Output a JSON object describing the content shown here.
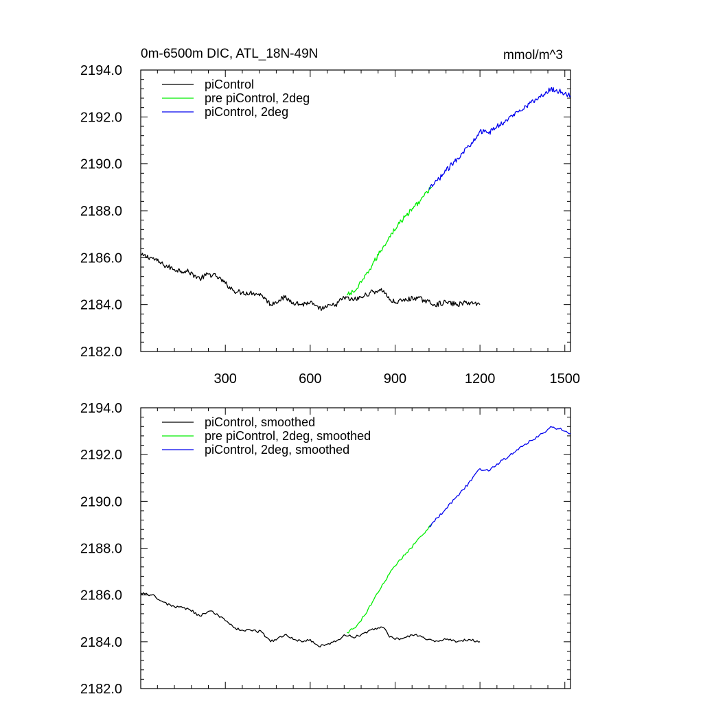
{
  "figure": {
    "title_left": "0m-6500m DIC, ATL_18N-49N",
    "title_right": "mmol/m^3"
  },
  "chart_data": [
    {
      "type": "line",
      "title": "0m-6500m DIC, ATL_18N-49N",
      "units": "mmol/m^3",
      "xlim": [
        1,
        1520
      ],
      "ylim": [
        2182.0,
        2194.0
      ],
      "xticks": [
        300,
        600,
        900,
        1200,
        1500
      ],
      "xtick_labels": [
        "300",
        "600",
        "900",
        "1200",
        "1500"
      ],
      "yticks": [
        2182.0,
        2184.0,
        2186.0,
        2188.0,
        2190.0,
        2192.0,
        2194.0
      ],
      "ytick_labels": [
        "2182.0",
        "2184.0",
        "2186.0",
        "2188.0",
        "2190.0",
        "2192.0",
        "2194.0"
      ],
      "legend_position": "top-left",
      "series": [
        {
          "name": "piControl",
          "color": "#000000",
          "points": [
            [
              1,
              2186.1
            ],
            [
              40,
              2186.0
            ],
            [
              80,
              2185.7
            ],
            [
              120,
              2185.5
            ],
            [
              170,
              2185.4
            ],
            [
              210,
              2185.1
            ],
            [
              240,
              2185.3
            ],
            [
              270,
              2185.2
            ],
            [
              300,
              2184.9
            ],
            [
              330,
              2184.6
            ],
            [
              360,
              2184.5
            ],
            [
              400,
              2184.5
            ],
            [
              430,
              2184.4
            ],
            [
              460,
              2184.0
            ],
            [
              490,
              2184.2
            ],
            [
              510,
              2184.3
            ],
            [
              540,
              2184.1
            ],
            [
              570,
              2184.0
            ],
            [
              600,
              2184.1
            ],
            [
              630,
              2183.8
            ],
            [
              660,
              2183.9
            ],
            [
              690,
              2184.0
            ],
            [
              720,
              2184.3
            ],
            [
              750,
              2184.2
            ],
            [
              780,
              2184.3
            ],
            [
              810,
              2184.5
            ],
            [
              840,
              2184.6
            ],
            [
              860,
              2184.6
            ],
            [
              880,
              2184.2
            ],
            [
              900,
              2184.1
            ],
            [
              940,
              2184.2
            ],
            [
              970,
              2184.3
            ],
            [
              1000,
              2184.2
            ],
            [
              1040,
              2184.0
            ],
            [
              1080,
              2184.1
            ],
            [
              1120,
              2184.0
            ],
            [
              1160,
              2184.1
            ],
            [
              1200,
              2184.0
            ]
          ]
        },
        {
          "name": "pre piControl, 2deg",
          "color": "#00ee00",
          "points": [
            [
              730,
              2184.4
            ],
            [
              760,
              2184.6
            ],
            [
              790,
              2185.1
            ],
            [
              820,
              2185.7
            ],
            [
              850,
              2186.3
            ],
            [
              880,
              2186.9
            ],
            [
              910,
              2187.4
            ],
            [
              940,
              2187.8
            ],
            [
              970,
              2188.2
            ],
            [
              1000,
              2188.6
            ],
            [
              1030,
              2189.0
            ]
          ]
        },
        {
          "name": "piControl, 2deg",
          "color": "#0000ee",
          "points": [
            [
              1020,
              2188.9
            ],
            [
              1050,
              2189.3
            ],
            [
              1080,
              2189.7
            ],
            [
              1110,
              2190.1
            ],
            [
              1140,
              2190.5
            ],
            [
              1170,
              2190.9
            ],
            [
              1200,
              2191.4
            ],
            [
              1230,
              2191.3
            ],
            [
              1260,
              2191.6
            ],
            [
              1300,
              2191.9
            ],
            [
              1340,
              2192.3
            ],
            [
              1380,
              2192.6
            ],
            [
              1420,
              2192.9
            ],
            [
              1450,
              2193.2
            ],
            [
              1480,
              2193.1
            ],
            [
              1500,
              2193.0
            ],
            [
              1520,
              2192.9
            ]
          ]
        }
      ]
    },
    {
      "type": "line",
      "title": "",
      "xlim": [
        1,
        1520
      ],
      "ylim": [
        2182.0,
        2194.0
      ],
      "xticks": [
        300,
        600,
        900,
        1200,
        1500
      ],
      "xtick_labels": [],
      "yticks": [
        2182.0,
        2184.0,
        2186.0,
        2188.0,
        2190.0,
        2192.0,
        2194.0
      ],
      "ytick_labels": [
        "2182.0",
        "2184.0",
        "2186.0",
        "2188.0",
        "2190.0",
        "2192.0",
        "2194.0"
      ],
      "legend_position": "top-left",
      "series": [
        {
          "name": "piControl, smoothed",
          "color": "#000000",
          "points": [
            [
              1,
              2186.1
            ],
            [
              40,
              2186.0
            ],
            [
              80,
              2185.7
            ],
            [
              120,
              2185.5
            ],
            [
              170,
              2185.4
            ],
            [
              210,
              2185.1
            ],
            [
              240,
              2185.3
            ],
            [
              270,
              2185.2
            ],
            [
              300,
              2184.9
            ],
            [
              330,
              2184.6
            ],
            [
              360,
              2184.5
            ],
            [
              400,
              2184.5
            ],
            [
              430,
              2184.4
            ],
            [
              460,
              2184.0
            ],
            [
              490,
              2184.2
            ],
            [
              510,
              2184.3
            ],
            [
              540,
              2184.1
            ],
            [
              570,
              2184.0
            ],
            [
              600,
              2184.1
            ],
            [
              630,
              2183.8
            ],
            [
              660,
              2183.9
            ],
            [
              690,
              2184.0
            ],
            [
              720,
              2184.3
            ],
            [
              750,
              2184.2
            ],
            [
              780,
              2184.3
            ],
            [
              810,
              2184.5
            ],
            [
              840,
              2184.6
            ],
            [
              860,
              2184.6
            ],
            [
              880,
              2184.2
            ],
            [
              900,
              2184.1
            ],
            [
              940,
              2184.2
            ],
            [
              970,
              2184.3
            ],
            [
              1000,
              2184.2
            ],
            [
              1040,
              2184.0
            ],
            [
              1080,
              2184.1
            ],
            [
              1120,
              2184.0
            ],
            [
              1160,
              2184.1
            ],
            [
              1200,
              2184.0
            ]
          ]
        },
        {
          "name": "pre piControl, 2deg, smoothed",
          "color": "#00ee00",
          "points": [
            [
              730,
              2184.4
            ],
            [
              760,
              2184.6
            ],
            [
              790,
              2185.1
            ],
            [
              820,
              2185.7
            ],
            [
              850,
              2186.3
            ],
            [
              880,
              2186.9
            ],
            [
              910,
              2187.4
            ],
            [
              940,
              2187.8
            ],
            [
              970,
              2188.2
            ],
            [
              1000,
              2188.6
            ],
            [
              1030,
              2189.0
            ]
          ]
        },
        {
          "name": "piControl, 2deg, smoothed",
          "color": "#0000ee",
          "points": [
            [
              1020,
              2188.9
            ],
            [
              1050,
              2189.3
            ],
            [
              1080,
              2189.7
            ],
            [
              1110,
              2190.1
            ],
            [
              1140,
              2190.5
            ],
            [
              1170,
              2190.9
            ],
            [
              1200,
              2191.4
            ],
            [
              1230,
              2191.3
            ],
            [
              1260,
              2191.6
            ],
            [
              1300,
              2191.9
            ],
            [
              1340,
              2192.3
            ],
            [
              1380,
              2192.6
            ],
            [
              1420,
              2192.9
            ],
            [
              1450,
              2193.2
            ],
            [
              1480,
              2193.1
            ],
            [
              1500,
              2193.0
            ],
            [
              1520,
              2192.9
            ]
          ]
        }
      ]
    }
  ]
}
